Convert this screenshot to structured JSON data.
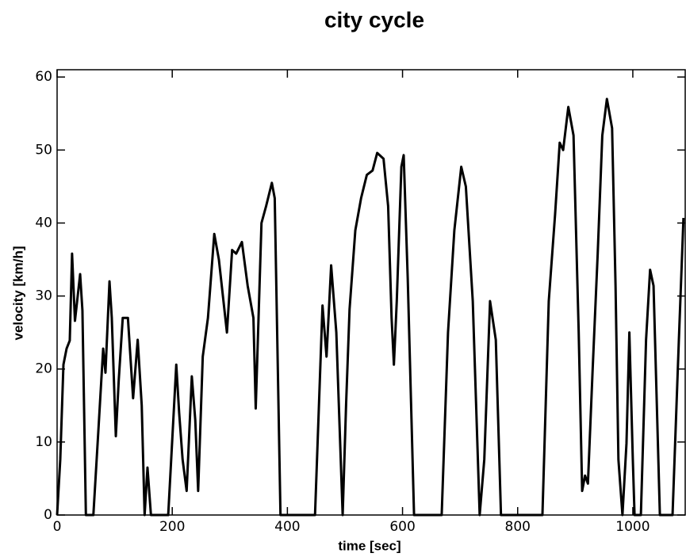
{
  "chart_data": {
    "type": "line",
    "title": "city cycle",
    "x_label": "time [sec]",
    "y_label": "velocity [km/h]",
    "series": [
      {
        "name": "velocity",
        "color": "#000000",
        "x": [
          0,
          5.5,
          11,
          16.5,
          22,
          26,
          31,
          40,
          44,
          50,
          63,
          72,
          80,
          84,
          91,
          95,
          102,
          107,
          114,
          123,
          132,
          140,
          147,
          152,
          157,
          163,
          193,
          207,
          212,
          218,
          225,
          234,
          240,
          245,
          253,
          262,
          273,
          281,
          295,
          304,
          311,
          321,
          331,
          341,
          345,
          355,
          363,
          373,
          378,
          388,
          448,
          461,
          468,
          476,
          485,
          496,
          502,
          508,
          518,
          528,
          538,
          548,
          556,
          567,
          575,
          581,
          585,
          590,
          598,
          602,
          609,
          620,
          668,
          679,
          690,
          702,
          710,
          722,
          734,
          742,
          752,
          762,
          771,
          843,
          854,
          865,
          873,
          879,
          888,
          897,
          906,
          912,
          917,
          922,
          930,
          939,
          947,
          955,
          964,
          970,
          975,
          982,
          989,
          994,
          1000,
          1003,
          1014,
          1023,
          1030,
          1036,
          1047,
          1069,
          1080,
          1088
        ],
        "values": [
          0,
          7.6,
          20.6,
          22.8,
          23.9,
          35.8,
          26.6,
          33,
          28,
          0,
          0,
          12,
          22.8,
          19.5,
          32,
          27,
          10.8,
          18.4,
          27,
          27,
          16,
          24,
          15,
          0,
          6.5,
          0,
          0,
          20.6,
          14,
          7.6,
          3.3,
          19,
          13,
          3.3,
          21.7,
          27,
          38.5,
          35,
          25,
          36.3,
          35.8,
          37.4,
          31.4,
          27,
          14.6,
          40,
          42.3,
          45.5,
          43.4,
          0,
          0,
          28.7,
          21.7,
          34.2,
          25,
          0,
          15.2,
          28.2,
          39,
          43.4,
          46.6,
          47.2,
          49.6,
          48.8,
          42.3,
          27,
          20.6,
          29.3,
          47.7,
          49.3,
          32.5,
          0,
          0,
          25,
          39,
          47.7,
          45,
          29.3,
          0,
          7.6,
          29.3,
          24,
          0,
          0,
          29.3,
          41.2,
          51,
          50,
          55.9,
          52,
          25,
          3.3,
          5.4,
          4.3,
          19.5,
          35.8,
          52,
          57,
          53,
          31.4,
          7.6,
          0,
          9.8,
          25,
          7.6,
          0,
          0,
          24,
          33.6,
          31.4,
          0,
          0,
          24,
          40.7
        ]
      }
    ],
    "xlim": [
      0,
      1091
    ],
    "ylim": [
      0,
      61
    ],
    "xticks": [
      0,
      200,
      400,
      600,
      800,
      1000
    ],
    "yticks": [
      0,
      10,
      20,
      30,
      40,
      50,
      60
    ]
  }
}
